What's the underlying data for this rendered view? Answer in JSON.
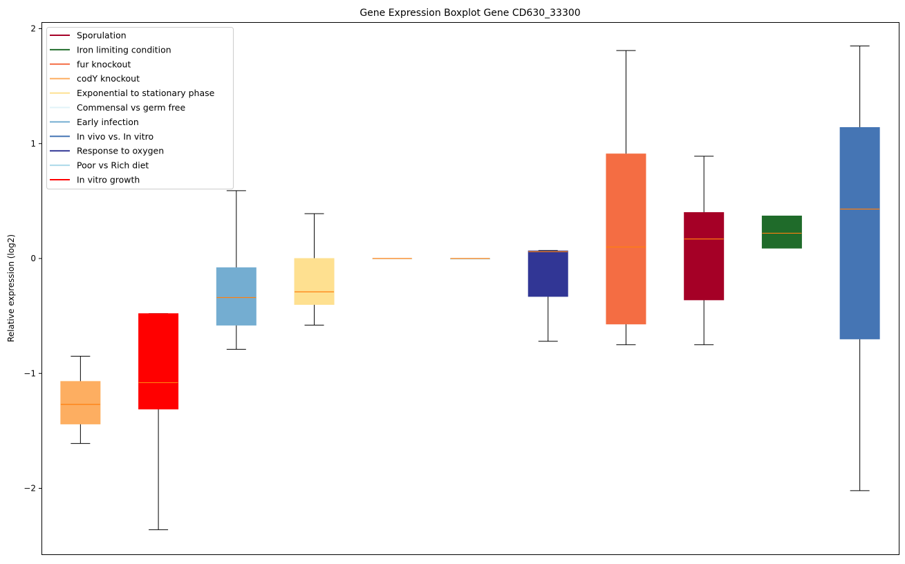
{
  "chart_data": {
    "type": "boxplot",
    "title": "Gene Expression Boxplot Gene CD630_33300",
    "xlabel": "",
    "ylabel": "Relative expression (log2)",
    "ylim": [
      -2.55,
      2.02
    ],
    "yticks": [
      -2,
      -1,
      0,
      1,
      2
    ],
    "ytick_labels": [
      "−2",
      "−1",
      "0",
      "1",
      "2"
    ],
    "grid": false,
    "legend_position": "top-left",
    "median_color": "#ff7f0e",
    "legend": [
      {
        "label": "Sporulation",
        "color": "#a50026"
      },
      {
        "label": "Iron limiting condition",
        "color": "#1f6b2a"
      },
      {
        "label": "fur knockout",
        "color": "#f46d43"
      },
      {
        "label": "codY knockout",
        "color": "#fdae61"
      },
      {
        "label": "Exponential to stationary phase",
        "color": "#fee090"
      },
      {
        "label": "Commensal vs germ free",
        "color": "#e0f3f8"
      },
      {
        "label": "Early infection",
        "color": "#74add1"
      },
      {
        "label": "In vivo vs. In vitro",
        "color": "#4575b4"
      },
      {
        "label": "Response to oxygen",
        "color": "#313695"
      },
      {
        "label": "Poor vs Rich diet",
        "color": "#abd9e9"
      },
      {
        "label": "In vitro growth",
        "color": "#ff0000"
      }
    ],
    "boxes": [
      {
        "group": "codY knockout",
        "color": "#fdae61",
        "whisker_low": -1.61,
        "q1": -1.44,
        "median": -1.27,
        "q3": -1.07,
        "whisker_high": -0.85
      },
      {
        "group": "In vitro growth",
        "color": "#ff0000",
        "whisker_low": -2.36,
        "q1": -1.31,
        "median": -1.08,
        "q3": -0.48,
        "whisker_high": -0.48
      },
      {
        "group": "Early infection",
        "color": "#74add1",
        "whisker_low": -0.79,
        "q1": -0.58,
        "median": -0.34,
        "q3": -0.08,
        "whisker_high": 0.59
      },
      {
        "group": "Exponential to stationary phase",
        "color": "#fee090",
        "whisker_low": -0.58,
        "q1": -0.4,
        "median": -0.29,
        "q3": 0.0,
        "whisker_high": 0.39
      },
      {
        "group": "Commensal vs germ free",
        "color": "#e0f3f8",
        "whisker_low": 0.0,
        "q1": 0.0,
        "median": 0.0,
        "q3": 0.0,
        "whisker_high": 0.0
      },
      {
        "group": "Poor vs Rich diet",
        "color": "#abd9e9",
        "whisker_low": 0.0,
        "q1": 0.0,
        "median": 0.0,
        "q3": 0.0,
        "whisker_high": 0.0
      },
      {
        "group": "Response to oxygen",
        "color": "#313695",
        "whisker_low": -0.72,
        "q1": -0.33,
        "median": 0.06,
        "q3": 0.066,
        "whisker_high": 0.07
      },
      {
        "group": "fur knockout",
        "color": "#f46d43",
        "whisker_low": -0.75,
        "q1": -0.57,
        "median": 0.1,
        "q3": 0.91,
        "whisker_high": 1.81
      },
      {
        "group": "Sporulation",
        "color": "#a50026",
        "whisker_low": -0.75,
        "q1": -0.36,
        "median": 0.17,
        "q3": 0.4,
        "whisker_high": 0.89
      },
      {
        "group": "Iron limiting condition",
        "color": "#1f6b2a",
        "whisker_low": 0.09,
        "q1": 0.09,
        "median": 0.22,
        "q3": 0.37,
        "whisker_high": 0.37
      },
      {
        "group": "In vivo vs. In vitro",
        "color": "#4575b4",
        "whisker_low": -2.02,
        "q1": -0.7,
        "median": 0.43,
        "q3": 1.14,
        "whisker_high": 1.85
      }
    ]
  }
}
